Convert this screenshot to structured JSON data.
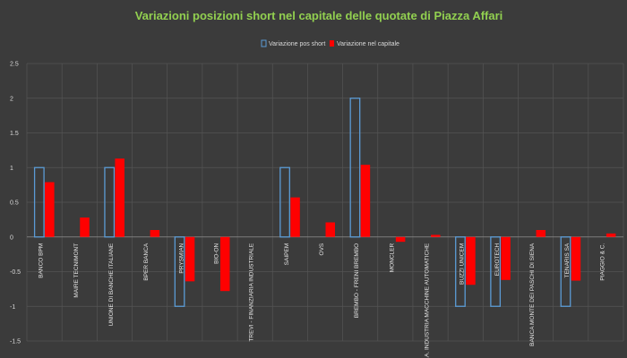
{
  "chart_data": {
    "type": "bar",
    "title": "Variazioni posizioni short nel capitale delle quotate di Piazza Affari",
    "xlabel": "",
    "ylabel": "",
    "ylim": [
      -1.5,
      2.5
    ],
    "yticks": [
      2.5,
      2,
      1.5,
      1,
      0.5,
      0,
      -0.5,
      -1,
      -1.5
    ],
    "ytick_labels": [
      "2.5",
      "2",
      "1.5",
      "1",
      "0.5",
      "0",
      "-0.5",
      "-1",
      "-1.5"
    ],
    "grid": true,
    "legend_position": "top-center",
    "categories": [
      "BANCO BPM",
      "MAIRE TECNIMONT",
      "UNIONE DI BANCHE ITALIANE",
      "BPER BANCA",
      "PRYSMIAN",
      "BIO-ON",
      "TREVI - FINANZIARIA INDUSTRIALE",
      "SAIPEM",
      "OVS",
      "BREMBO - FRENI BREMBO",
      "MONCLER",
      "I.M.A. INDUSTRIA MACCHINE AUTOMATICHE",
      "BUZZI UNICEM",
      "EUROTECH",
      "BANCA MONTE DEI PASCHI DI SIENA",
      "TENARIS SA",
      "PIAGGIO & C."
    ],
    "series": [
      {
        "name": "Variazione pos short",
        "color": "#5b9bd5",
        "style": "outline",
        "values": [
          1,
          0,
          1,
          0,
          -1,
          0,
          0,
          1,
          0,
          2,
          0,
          0,
          -1,
          -1,
          0,
          -1,
          0
        ]
      },
      {
        "name": "Variazione nel capitale",
        "color": "#ff0000",
        "style": "filled",
        "values": [
          0.79,
          0.28,
          1.13,
          0.1,
          -0.64,
          -0.78,
          0,
          0.57,
          0.21,
          1.04,
          -0.07,
          0.03,
          -0.69,
          -0.62,
          0.1,
          -0.63,
          0.05
        ]
      }
    ]
  }
}
